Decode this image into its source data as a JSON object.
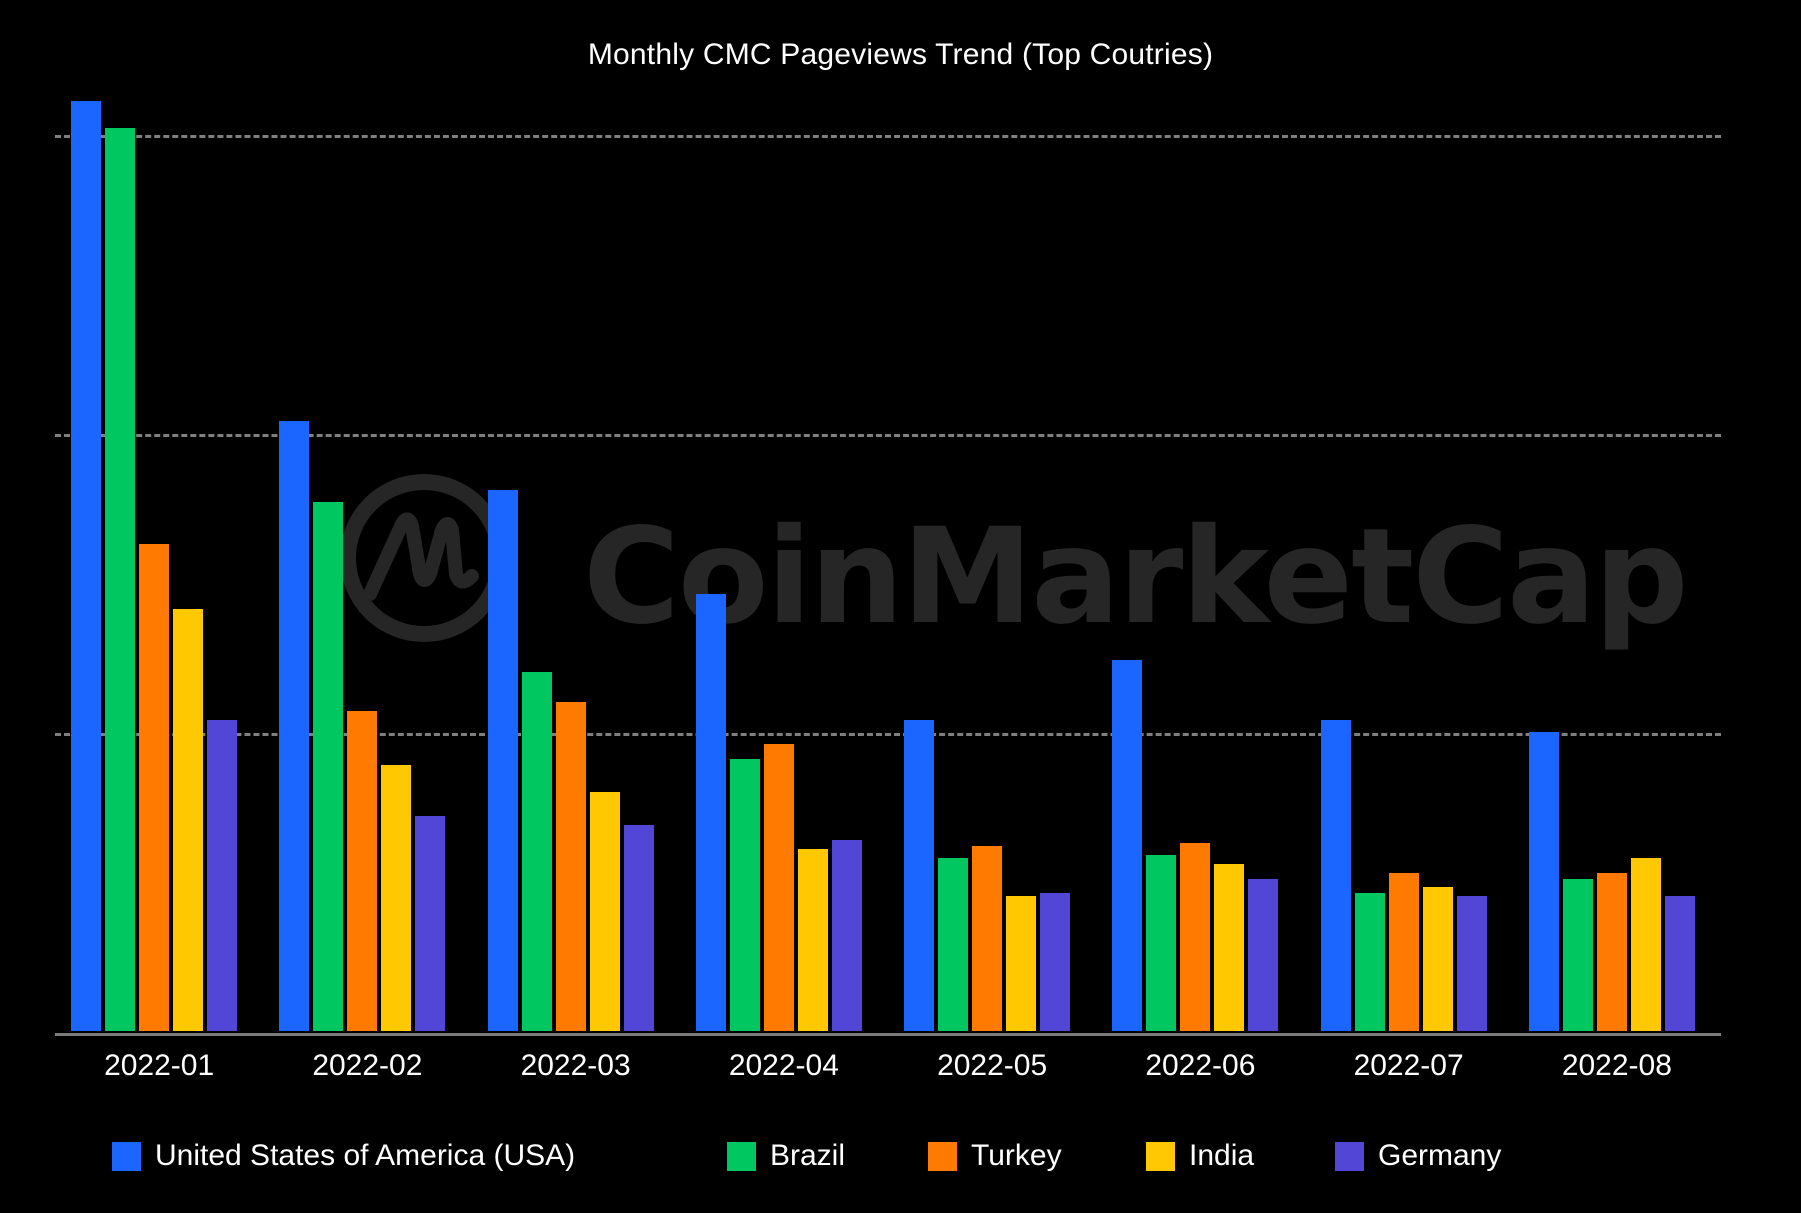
{
  "chart_data": {
    "type": "bar",
    "title": "Monthly CMC Pageviews Trend (Top Coutries)",
    "xlabel": "",
    "ylabel": "",
    "categories": [
      "2022-01",
      "2022-02",
      "2022-03",
      "2022-04",
      "2022-05",
      "2022-06",
      "2022-07",
      "2022-08"
    ],
    "series": [
      {
        "name": "United States of America (USA)",
        "color": "#1a66ff",
        "values": [
          311,
          204,
          181,
          146,
          104,
          124,
          104,
          100
        ]
      },
      {
        "name": "Brazil",
        "color": "#00c75f",
        "values": [
          302,
          177,
          120,
          91,
          58,
          59,
          46,
          51
        ]
      },
      {
        "name": "Turkey",
        "color": "#ff7a00",
        "values": [
          163,
          107,
          110,
          96,
          62,
          63,
          53,
          53
        ]
      },
      {
        "name": "India",
        "color": "#ffc800",
        "values": [
          141,
          89,
          80,
          61,
          45,
          56,
          48,
          58
        ]
      },
      {
        "name": "Germany",
        "color": "#5146d6",
        "values": [
          104,
          72,
          69,
          64,
          46,
          51,
          45,
          45
        ]
      }
    ],
    "value_units": "relative (y-axis tick labels not shown; one gridline interval = 100)",
    "gridlines": [
      100,
      200,
      300
    ],
    "grid": true,
    "grid_style": "dashed horizontal",
    "ylim": [
      0,
      330
    ],
    "legend_position": "bottom",
    "watermark": "CoinMarketCap"
  },
  "colors": {
    "background": "#000000",
    "text": "#ffffff",
    "grid": "#7f7f7f",
    "axis": "#7a7a7a",
    "watermark": "#262626"
  }
}
